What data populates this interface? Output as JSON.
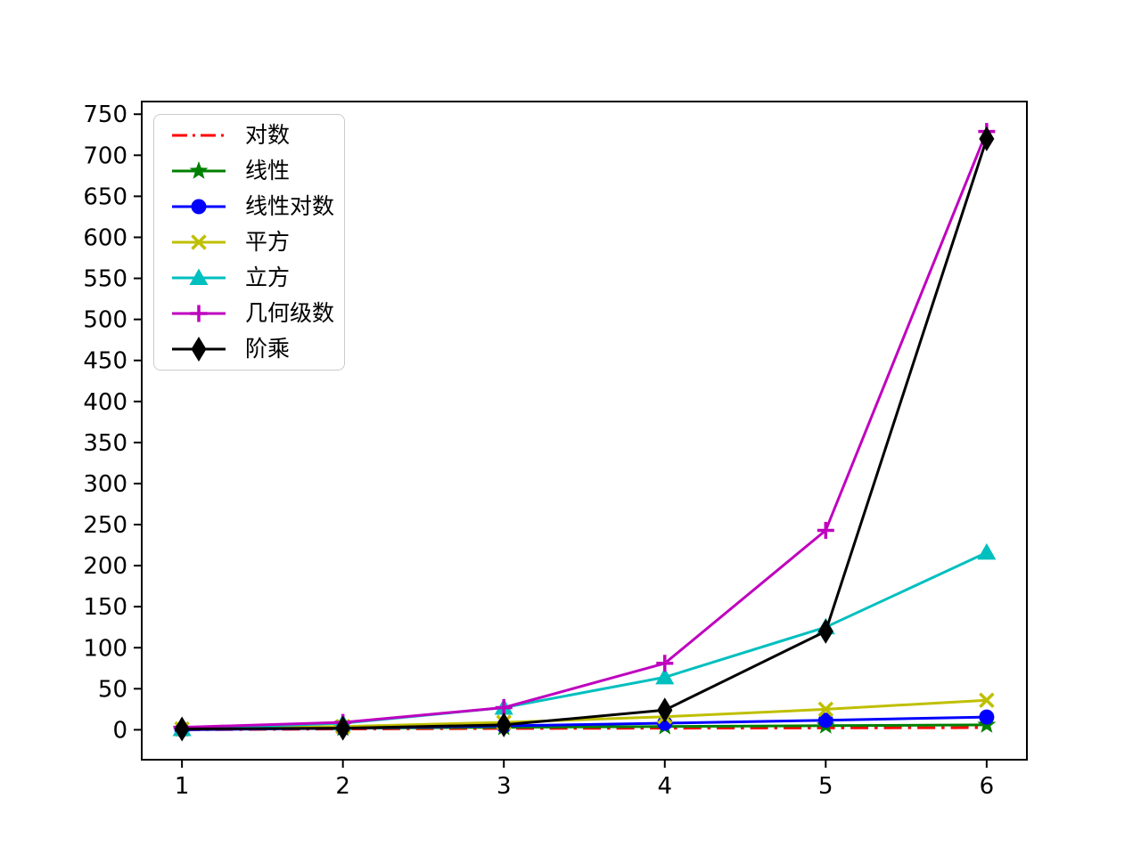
{
  "chart_data": {
    "type": "line",
    "title": "",
    "xlabel": "",
    "ylabel": "",
    "grid": false,
    "background_color": "#ffffff",
    "axis_color": "#000000",
    "legend_position": "upper-left",
    "x": [
      1,
      2,
      3,
      4,
      5,
      6
    ],
    "xticks": [
      1,
      2,
      3,
      4,
      5,
      6
    ],
    "yticks": [
      0,
      50,
      100,
      150,
      200,
      250,
      300,
      350,
      400,
      450,
      500,
      550,
      600,
      650,
      700,
      750
    ],
    "xlim": [
      0.75,
      6.25
    ],
    "ylim": [
      -36.45,
      765.45
    ],
    "series": [
      {
        "id": "logarithm",
        "name": "对数",
        "color": "#ff0000",
        "linestyle": "dashdot",
        "marker": "none",
        "values": [
          0,
          1,
          1.585,
          2,
          2.322,
          2.585
        ]
      },
      {
        "id": "linear",
        "name": "线性",
        "color": "#008000",
        "linestyle": "solid",
        "marker": "star",
        "values": [
          1,
          2,
          3,
          4,
          5,
          6
        ]
      },
      {
        "id": "linearithmic",
        "name": "线性对数",
        "color": "#0000ff",
        "linestyle": "solid",
        "marker": "circle",
        "values": [
          0,
          2,
          4.755,
          8,
          11.61,
          15.51
        ]
      },
      {
        "id": "square",
        "name": "平方",
        "color": "#bfbf00",
        "linestyle": "solid",
        "marker": "x",
        "values": [
          1,
          4,
          9,
          16,
          25,
          36
        ]
      },
      {
        "id": "cube",
        "name": "立方",
        "color": "#00bfbf",
        "linestyle": "solid",
        "marker": "triangle-up",
        "values": [
          1,
          8,
          27,
          64,
          125,
          216
        ]
      },
      {
        "id": "geometric",
        "name": "几何级数",
        "color": "#bf00bf",
        "linestyle": "solid",
        "marker": "plus",
        "values": [
          3,
          9,
          27,
          81,
          243,
          729
        ]
      },
      {
        "id": "factorial",
        "name": "阶乘",
        "color": "#000000",
        "linestyle": "solid",
        "marker": "diamond",
        "values": [
          1,
          2,
          6,
          24,
          120,
          720
        ]
      }
    ]
  }
}
